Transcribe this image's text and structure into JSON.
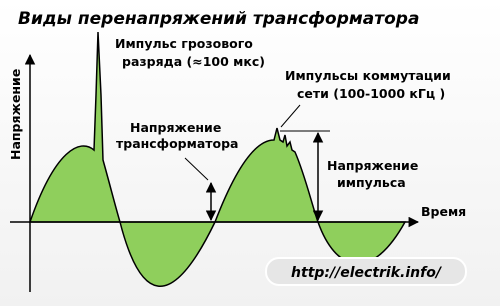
{
  "title": "Виды перенапряжений трансформатора",
  "y_axis_label": "Напряжение",
  "x_axis_label": "Время",
  "lightning": {
    "line1": "Импульс грозового",
    "line2": "разряда (≈100 мкс)"
  },
  "switching": {
    "line1": "Импульсы коммутации",
    "line2": "сети (100-1000 кГц )"
  },
  "transformer_voltage": {
    "line1": "Напряжение",
    "line2": "трансформатора"
  },
  "impulse_voltage": {
    "line1": "Напряжение",
    "line2": "импульса"
  },
  "url": "http://electrik.info/"
}
